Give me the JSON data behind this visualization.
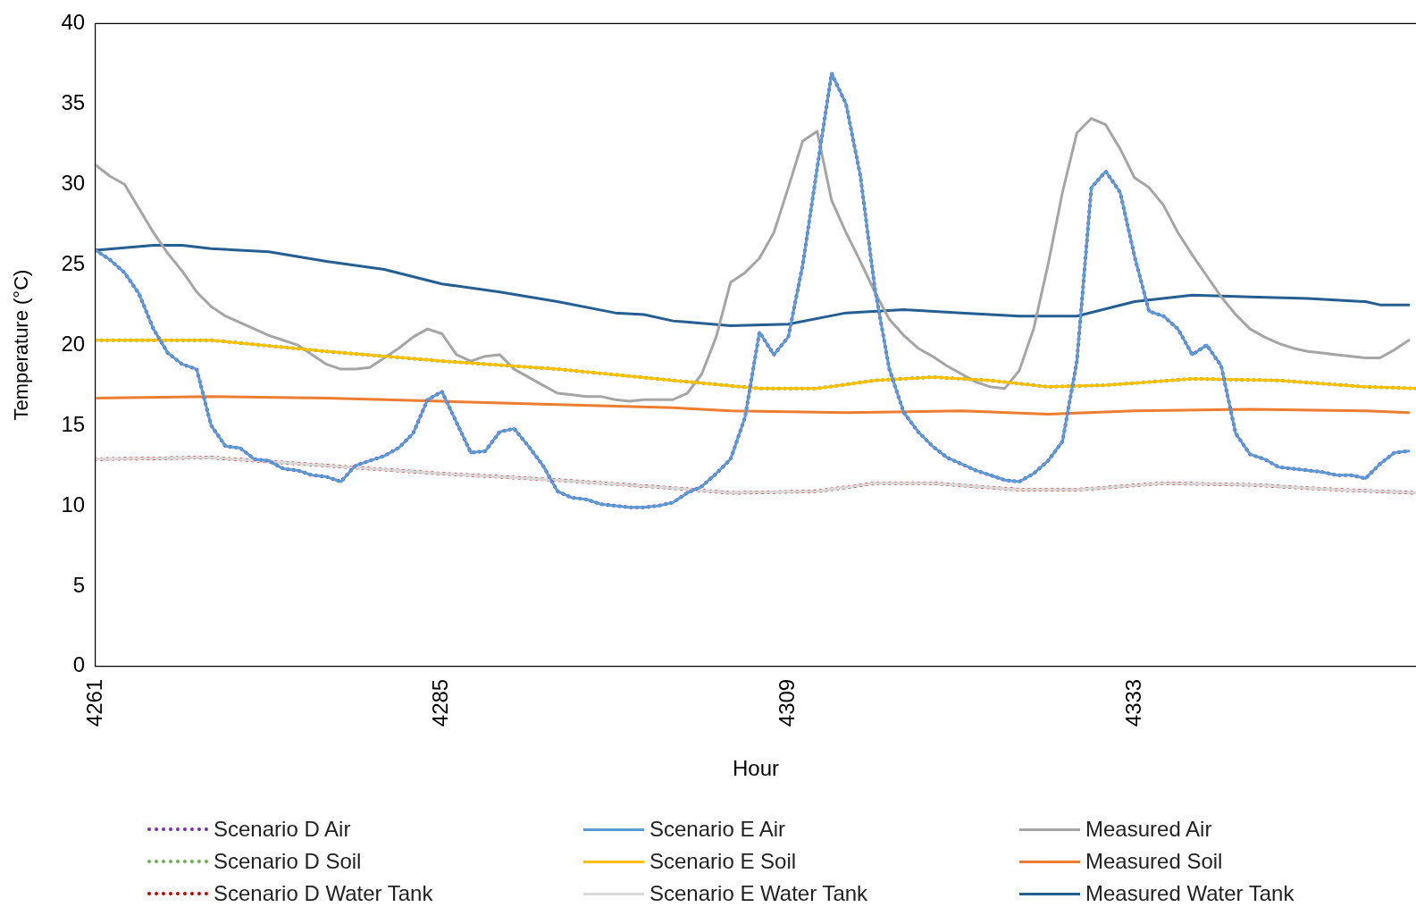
{
  "chart_data": {
    "type": "line",
    "xlabel": "Hour",
    "ylabel": "Temperature (°C)",
    "xlim": [
      4261,
      4352.5
    ],
    "xticks": [
      4261,
      4285,
      4309,
      4333
    ],
    "ylim": [
      0,
      40
    ],
    "yticks": [
      0,
      5,
      10,
      15,
      20,
      25,
      30,
      35,
      40
    ],
    "grid": false,
    "legend": "bottom",
    "marker": "none",
    "series": [
      {
        "name": "Scenario E Air",
        "color": "#5b9bd5",
        "line_style": "solid",
        "x": [
          4261,
          4262,
          4263,
          4264,
          4265,
          4266,
          4267,
          4268,
          4269,
          4270,
          4271,
          4272,
          4273,
          4274,
          4275,
          4276,
          4277,
          4278,
          4279,
          4280,
          4281,
          4282,
          4283,
          4284,
          4285,
          4286,
          4287,
          4288,
          4289,
          4290,
          4291,
          4292,
          4293,
          4294,
          4295,
          4296,
          4297,
          4298,
          4299,
          4300,
          4301,
          4302,
          4303,
          4304,
          4305,
          4306,
          4307,
          4308,
          4309,
          4310,
          4311,
          4312,
          4313,
          4314,
          4315,
          4316,
          4317,
          4318,
          4319,
          4320,
          4321,
          4322,
          4323,
          4324,
          4325,
          4326,
          4327,
          4328,
          4329,
          4330,
          4331,
          4332,
          4333,
          4334,
          4335,
          4336,
          4337,
          4338,
          4339,
          4340,
          4341,
          4342,
          4343,
          4344,
          4345,
          4346,
          4347,
          4348,
          4349,
          4350,
          4351,
          4352
        ],
        "values": [
          25.9,
          25.3,
          24.5,
          23.2,
          21.0,
          19.5,
          18.8,
          18.5,
          15.0,
          13.7,
          13.6,
          12.9,
          12.8,
          12.3,
          12.2,
          11.9,
          11.8,
          11.5,
          12.5,
          12.8,
          13.1,
          13.6,
          14.5,
          16.6,
          17.1,
          15.2,
          13.3,
          13.4,
          14.6,
          14.8,
          13.7,
          12.5,
          10.9,
          10.5,
          10.4,
          10.1,
          10.0,
          9.9,
          9.9,
          10.0,
          10.2,
          10.8,
          11.2,
          12.0,
          12.9,
          15.5,
          20.8,
          19.4,
          20.5,
          25.0,
          31.0,
          36.9,
          35.0,
          30.5,
          23.5,
          18.5,
          15.8,
          14.6,
          13.7,
          13.0,
          12.6,
          12.2,
          11.9,
          11.6,
          11.5,
          12.0,
          12.8,
          14.0,
          19.0,
          29.8,
          30.8,
          29.5,
          25.5,
          22.1,
          21.8,
          21.0,
          19.4,
          20.0,
          18.7,
          14.5,
          13.2,
          12.9,
          12.4,
          12.3,
          12.2,
          12.1,
          11.9,
          11.9,
          11.7,
          12.6,
          13.3,
          13.4
        ]
      },
      {
        "name": "Scenario D Air",
        "color": "#7030a0",
        "line_style": "dotted",
        "x": [
          4261,
          4262,
          4263,
          4264,
          4265,
          4266,
          4267,
          4268,
          4269,
          4270,
          4271,
          4272,
          4273,
          4274,
          4275,
          4276,
          4277,
          4278,
          4279,
          4280,
          4281,
          4282,
          4283,
          4284,
          4285,
          4286,
          4287,
          4288,
          4289,
          4290,
          4291,
          4292,
          4293,
          4294,
          4295,
          4296,
          4297,
          4298,
          4299,
          4300,
          4301,
          4302,
          4303,
          4304,
          4305,
          4306,
          4307,
          4308,
          4309,
          4310,
          4311,
          4312,
          4313,
          4314,
          4315,
          4316,
          4317,
          4318,
          4319,
          4320,
          4321,
          4322,
          4323,
          4324,
          4325,
          4326,
          4327,
          4328,
          4329,
          4330,
          4331,
          4332,
          4333,
          4334,
          4335,
          4336,
          4337,
          4338,
          4339,
          4340,
          4341,
          4342,
          4343,
          4344,
          4345,
          4346,
          4347,
          4348,
          4349,
          4350,
          4351,
          4352
        ],
        "values": [
          25.9,
          25.3,
          24.5,
          23.2,
          21.0,
          19.5,
          18.8,
          18.5,
          15.0,
          13.7,
          13.6,
          12.9,
          12.8,
          12.3,
          12.2,
          11.9,
          11.8,
          11.5,
          12.5,
          12.8,
          13.1,
          13.6,
          14.5,
          16.6,
          17.1,
          15.2,
          13.3,
          13.4,
          14.6,
          14.8,
          13.7,
          12.5,
          10.9,
          10.5,
          10.4,
          10.1,
          10.0,
          9.9,
          9.9,
          10.0,
          10.2,
          10.8,
          11.2,
          12.0,
          12.9,
          15.5,
          20.8,
          19.4,
          20.5,
          25.0,
          31.0,
          36.9,
          35.0,
          30.5,
          23.5,
          18.5,
          15.8,
          14.6,
          13.7,
          13.0,
          12.6,
          12.2,
          11.9,
          11.6,
          11.5,
          12.0,
          12.8,
          14.0,
          19.0,
          29.8,
          30.8,
          29.5,
          25.5,
          22.1,
          21.8,
          21.0,
          19.4,
          20.0,
          18.7,
          14.5,
          13.2,
          12.9,
          12.4,
          12.3,
          12.2,
          12.1,
          11.9,
          11.9,
          11.7,
          12.6,
          13.3,
          13.4
        ]
      },
      {
        "name": "Scenario E Soil",
        "color": "#ffc000",
        "line_style": "solid",
        "x": [
          4261,
          4269,
          4277,
          4285,
          4293,
          4301,
          4307,
          4311,
          4315,
          4319,
          4323,
          4327,
          4331,
          4337,
          4343,
          4349,
          4352.5
        ],
        "values": [
          20.3,
          20.3,
          19.6,
          19.0,
          18.5,
          17.8,
          17.3,
          17.3,
          17.8,
          18.0,
          17.8,
          17.4,
          17.5,
          17.9,
          17.8,
          17.4,
          17.3
        ]
      },
      {
        "name": "Scenario D Soil",
        "color": "#70ad47",
        "line_style": "dotted",
        "x": [
          4261,
          4269,
          4277,
          4285,
          4293,
          4301,
          4307,
          4311,
          4315,
          4319,
          4323,
          4327,
          4331,
          4337,
          4343,
          4349,
          4352.5
        ],
        "values": [
          20.3,
          20.3,
          19.6,
          19.0,
          18.5,
          17.8,
          17.3,
          17.3,
          17.8,
          18.0,
          17.8,
          17.4,
          17.5,
          17.9,
          17.8,
          17.4,
          17.3
        ]
      },
      {
        "name": "Scenario E Water Tank",
        "color": "#d9d9d9",
        "line_style": "solid",
        "x": [
          4261,
          4269,
          4277,
          4285,
          4293,
          4301,
          4305,
          4311,
          4315,
          4319,
          4325,
          4329,
          4335,
          4341,
          4347,
          4352.5
        ],
        "values": [
          12.9,
          13.0,
          12.5,
          12.0,
          11.6,
          11.1,
          10.8,
          10.9,
          11.4,
          11.4,
          11.0,
          11.0,
          11.4,
          11.3,
          11.0,
          10.8
        ]
      },
      {
        "name": "Scenario D Water Tank",
        "color": "#c00000",
        "line_style": "dotted",
        "x": [
          4261,
          4269,
          4277,
          4285,
          4293,
          4301,
          4305,
          4311,
          4315,
          4319,
          4325,
          4329,
          4335,
          4341,
          4347,
          4352.5
        ],
        "values": [
          12.9,
          13.0,
          12.5,
          12.0,
          11.6,
          11.1,
          10.8,
          10.9,
          11.4,
          11.4,
          11.0,
          11.0,
          11.4,
          11.3,
          11.0,
          10.8
        ]
      },
      {
        "name": "Measured Air",
        "color": "#a5a5a5",
        "line_style": "solid",
        "x": [
          4261,
          4262,
          4263,
          4264,
          4265,
          4266,
          4267,
          4268,
          4269,
          4270,
          4271,
          4272,
          4273,
          4274,
          4275,
          4276,
          4277,
          4278,
          4279,
          4280,
          4281,
          4282,
          4283,
          4284,
          4285,
          4286,
          4287,
          4288,
          4289,
          4290,
          4291,
          4292,
          4293,
          4294,
          4295,
          4296,
          4297,
          4298,
          4299,
          4300,
          4301,
          4302,
          4303,
          4304,
          4305,
          4306,
          4307,
          4308,
          4309,
          4310,
          4311,
          4312,
          4313,
          4314,
          4315,
          4316,
          4317,
          4318,
          4319,
          4320,
          4321,
          4322,
          4323,
          4324,
          4325,
          4326,
          4327,
          4328,
          4329,
          4330,
          4331,
          4332,
          4333,
          4334,
          4335,
          4336,
          4337,
          4338,
          4339,
          4340,
          4341,
          4342,
          4343,
          4344,
          4345,
          4346,
          4347,
          4348,
          4349,
          4350,
          4351,
          4352
        ],
        "values": [
          31.2,
          30.5,
          30.0,
          28.5,
          27.0,
          25.7,
          24.6,
          23.3,
          22.4,
          21.8,
          21.4,
          21.0,
          20.6,
          20.3,
          20.0,
          19.4,
          18.8,
          18.5,
          18.5,
          18.6,
          19.2,
          19.8,
          20.5,
          21.0,
          20.7,
          19.4,
          19.0,
          19.3,
          19.4,
          18.5,
          18.0,
          17.5,
          17.0,
          16.9,
          16.8,
          16.8,
          16.6,
          16.5,
          16.6,
          16.6,
          16.6,
          17.0,
          18.2,
          20.5,
          23.9,
          24.5,
          25.4,
          27.0,
          29.8,
          32.7,
          33.3,
          29.0,
          27.0,
          25.2,
          23.3,
          21.6,
          20.6,
          19.8,
          19.3,
          18.7,
          18.2,
          17.7,
          17.4,
          17.3,
          18.4,
          21.0,
          25.0,
          29.5,
          33.2,
          34.1,
          33.7,
          32.2,
          30.4,
          29.8,
          28.7,
          27.0,
          25.6,
          24.3,
          23.0,
          21.9,
          21.0,
          20.5,
          20.1,
          19.8,
          19.6,
          19.5,
          19.4,
          19.3,
          19.2,
          19.2,
          19.7,
          20.3
        ]
      },
      {
        "name": "Measured Soil",
        "color": "#ed7d31",
        "line_style": "solid",
        "x": [
          4261,
          4269,
          4277,
          4285,
          4293,
          4301,
          4305,
          4313,
          4321,
          4327,
          4333,
          4341,
          4349,
          4352
        ],
        "values": [
          16.7,
          16.8,
          16.7,
          16.5,
          16.3,
          16.1,
          15.9,
          15.8,
          15.9,
          15.7,
          15.9,
          16.0,
          15.9,
          15.8
        ]
      },
      {
        "name": "Measured Water Tank",
        "color": "#255e91",
        "line_style": "solid",
        "x": [
          4261,
          4265,
          4267,
          4269,
          4273,
          4277,
          4281,
          4285,
          4289,
          4293,
          4297,
          4299,
          4301,
          4305,
          4309,
          4313,
          4317,
          4321,
          4325,
          4329,
          4333,
          4337,
          4341,
          4345,
          4349,
          4350,
          4352
        ],
        "values": [
          25.9,
          26.2,
          26.2,
          26.0,
          25.8,
          25.2,
          24.7,
          23.8,
          23.3,
          22.7,
          22.0,
          21.9,
          21.5,
          21.2,
          21.3,
          22.0,
          22.2,
          22.0,
          21.8,
          21.8,
          22.7,
          23.1,
          23.0,
          22.9,
          22.7,
          22.5,
          22.5
        ]
      }
    ]
  }
}
